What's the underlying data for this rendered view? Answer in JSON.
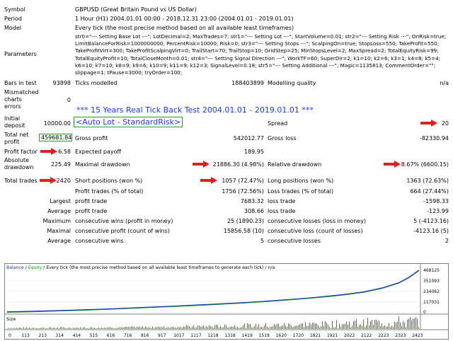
{
  "header": {
    "symbol_label": "Symbol",
    "symbol_value": "GBPUSD (Great Britain Pound vs US Dollar)",
    "period_label": "Period",
    "period_value": "1 Hour (H1) 2004.01.01 00:00 - 2018.12.31 23:00 (2004.01.01 - 2019.01.01)",
    "model_label": "Model",
    "model_value": "Every tick (the most precise method based on all available least timeframes)",
    "params_label": "Parameters",
    "params_value": "str0=\"--- Setting Base Lot ---\"; LotDecimal=2; MaxTrades=7; str1=\"--- Setting Lot ---\"; StartVolume=0.01; str2=\"--- Setting Risk ---\"; OnRisk=true; LimitBalanceForRisk=1000000000; PercentRisk=10000; Risk=0; str3=\"--- Setting Stops ---\"; ScalpingOn=true; StopLoss=550; TakeProfit=550; TakeProfitVirt=300; TakeProfitScalpingVirt=0; TrailStart=70; TrailStop=10; GridStep=25; MinStopsLevel=2; MaxSpread=2; TotalEquityRisk=99; TotalEquityProfit=10; TotalCloseMonth=0.01; str4=\"--- Setting Signal Direction ---\"; WorkTF=60; SuperDir=2; k1=10; k2=6; k3=1; k4=8; k5=4; k6=10; k7=10; k8=9; k9=6; k10=9; k11=9; k12=3; SignalLevel=0.18; str5=\"--- Setting Additional ---\"; Magic=1135813; CommentOrder=\"\"; slippage=1; tPause=3000; tryOrder=100;"
  },
  "stats": {
    "bars_label": "Bars in test",
    "bars_value": "93898",
    "ticks_label": "Ticks modelled",
    "ticks_value": "188403899",
    "quality_label": "Modelling quality",
    "quality_value": "n/a",
    "mismatch_label": "Mismatched charts errors",
    "mismatch_value": "0",
    "initial_label": "Initial deposit",
    "initial_value": "10000.00",
    "spread_label": "Spread",
    "spread_value": "20",
    "net_label": "Total net profit",
    "net_value": "459681.84",
    "gross_profit_label": "Gross profit",
    "gross_profit_value": "542012.77",
    "gross_loss_label": "Gross loss",
    "gross_loss_value": "-82330.94",
    "pf_label": "Profit factor",
    "pf_value": "6.58",
    "payoff_label": "Expected payoff",
    "payoff_value": "189.95",
    "abs_dd_label": "Absolute drawdown",
    "abs_dd_value": "225.49",
    "max_dd_label": "Maximal drawdown",
    "max_dd_value": "21886.30 (4.98%)",
    "rel_dd_label": "Relative drawdown",
    "rel_dd_value": "8.67% (6600.15)",
    "trades_label": "Total trades",
    "trades_value": "2420",
    "short_label": "Short positions (won %)",
    "short_value": "1057 (72.47%)",
    "long_label": "Long positions (won %)",
    "long_value": "1363 (72.63%)",
    "profit_trades_label": "Profit trades (% of total)",
    "profit_trades_value": "1756 (72.56%)",
    "loss_trades_label": "Loss trades (% of total)",
    "loss_trades_value": "664 (27.44%)",
    "largest_label": "Largest",
    "largest_profit_label": "profit trade",
    "largest_profit_value": "7683.32",
    "largest_loss_label": "loss trade",
    "largest_loss_value": "-1598.33",
    "average_label": "Average",
    "avg_profit_label": "profit trade",
    "avg_profit_value": "308.66",
    "avg_loss_label": "loss trade",
    "avg_loss_value": "-123.99",
    "maximum_label": "Maximum",
    "max_cw_label": "consecutive wins (profit in money)",
    "max_cw_value": "25 (1890.23)",
    "max_cl_label": "consecutive losses (loss in money)",
    "max_cl_value": "5 (-4123.16)",
    "maximal_label": "Maximal",
    "mxl_cw_label": "consecutive profit (count of wins)",
    "mxl_cw_value": "15856.58 (10)",
    "mxl_cl_label": "consecutive loss (count of losses)",
    "mxl_cl_value": "-4123.16 (5)",
    "average2_label": "Average",
    "avg_cw_label": "consecutive wins",
    "avg_cw_value": "5",
    "avg_cl_label": "consecutive losses",
    "avg_cl_value": "2"
  },
  "annotations": {
    "headline": "*** 15 Years Real Tick Back Test 2004.01.01 - 2019.01.01 ***",
    "autolot": "<Auto Lot - StandardRisk>"
  },
  "colors": {
    "arrow": "#e02020",
    "balance": "#1a2fbf",
    "equity": "#1aa01a",
    "box": "#2a9a2a",
    "headline": "#1a3aff"
  },
  "chart_data": {
    "type": "line",
    "title": "",
    "legend_balance": "Balance",
    "legend_sep": " / ",
    "legend_equity": "Equity",
    "legend_rest": " / Every tick (the most precise method based on all available least timeframes to generate each tick) / n/a",
    "yticks": [
      "468125",
      "351093",
      "234062",
      "117031",
      "0"
    ],
    "ylim": [
      0,
      468125
    ],
    "size_label": "Size",
    "xticks": [
      "0",
      "113",
      "213",
      "314",
      "414",
      "515",
      "616",
      "716",
      "816",
      "917",
      "1017",
      "1117",
      "1218",
      "1318",
      "1419",
      "1519",
      "1620",
      "1720",
      "1821",
      "1921",
      "2022",
      "2122",
      "2223",
      "2323",
      "2423"
    ],
    "xlim": [
      0,
      2420
    ],
    "series": [
      {
        "name": "Balance",
        "x": [
          0,
          100,
          200,
          300,
          400,
          500,
          600,
          700,
          800,
          900,
          1000,
          1100,
          1200,
          1300,
          1400,
          1500,
          1600,
          1700,
          1800,
          1900,
          2000,
          2100,
          2200,
          2300,
          2360,
          2420
        ],
        "y": [
          10000,
          14000,
          19000,
          24000,
          30000,
          36000,
          43000,
          51000,
          59000,
          67000,
          75000,
          84000,
          93000,
          103000,
          113000,
          125000,
          138000,
          152000,
          168000,
          186000,
          206000,
          232000,
          272000,
          330000,
          390000,
          469682
        ]
      }
    ]
  }
}
